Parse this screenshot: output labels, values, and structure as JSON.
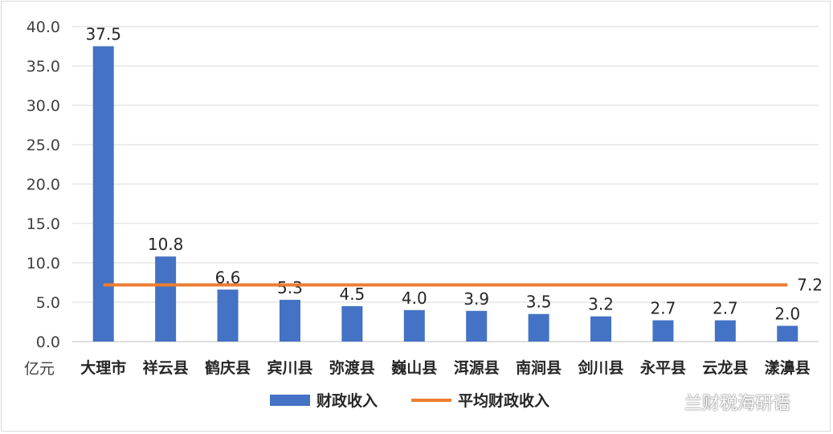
{
  "chart_data": {
    "type": "bar",
    "y_unit_label": "亿元",
    "ylim": [
      0,
      40
    ],
    "y_ticks": [
      "0.0",
      "5.0",
      "10.0",
      "15.0",
      "20.0",
      "25.0",
      "30.0",
      "35.0",
      "40.0"
    ],
    "grid": true,
    "legend_position": "bottom",
    "categories": [
      "大理市",
      "祥云县",
      "鹤庆县",
      "宾川县",
      "弥渡县",
      "巍山县",
      "洱源县",
      "南涧县",
      "剑川县",
      "永平县",
      "云龙县",
      "漾濞县"
    ],
    "series": [
      {
        "name": "财政收入",
        "type": "bar",
        "color": "#4472c4",
        "values": [
          37.5,
          10.8,
          6.6,
          5.3,
          4.5,
          4.0,
          3.9,
          3.5,
          3.2,
          2.7,
          2.7,
          2.0
        ],
        "labels": [
          "37.5",
          "10.8",
          "6.6",
          "5.3",
          "4.5",
          "4.0",
          "3.9",
          "3.5",
          "3.2",
          "2.7",
          "2.7",
          "2.0"
        ]
      },
      {
        "name": "平均财政收入",
        "type": "line",
        "color": "#ed7d31",
        "value": 7.2,
        "label": "7.2"
      }
    ]
  },
  "watermark": {
    "icon": "wechat-icon",
    "text": "兰财税海研语"
  }
}
